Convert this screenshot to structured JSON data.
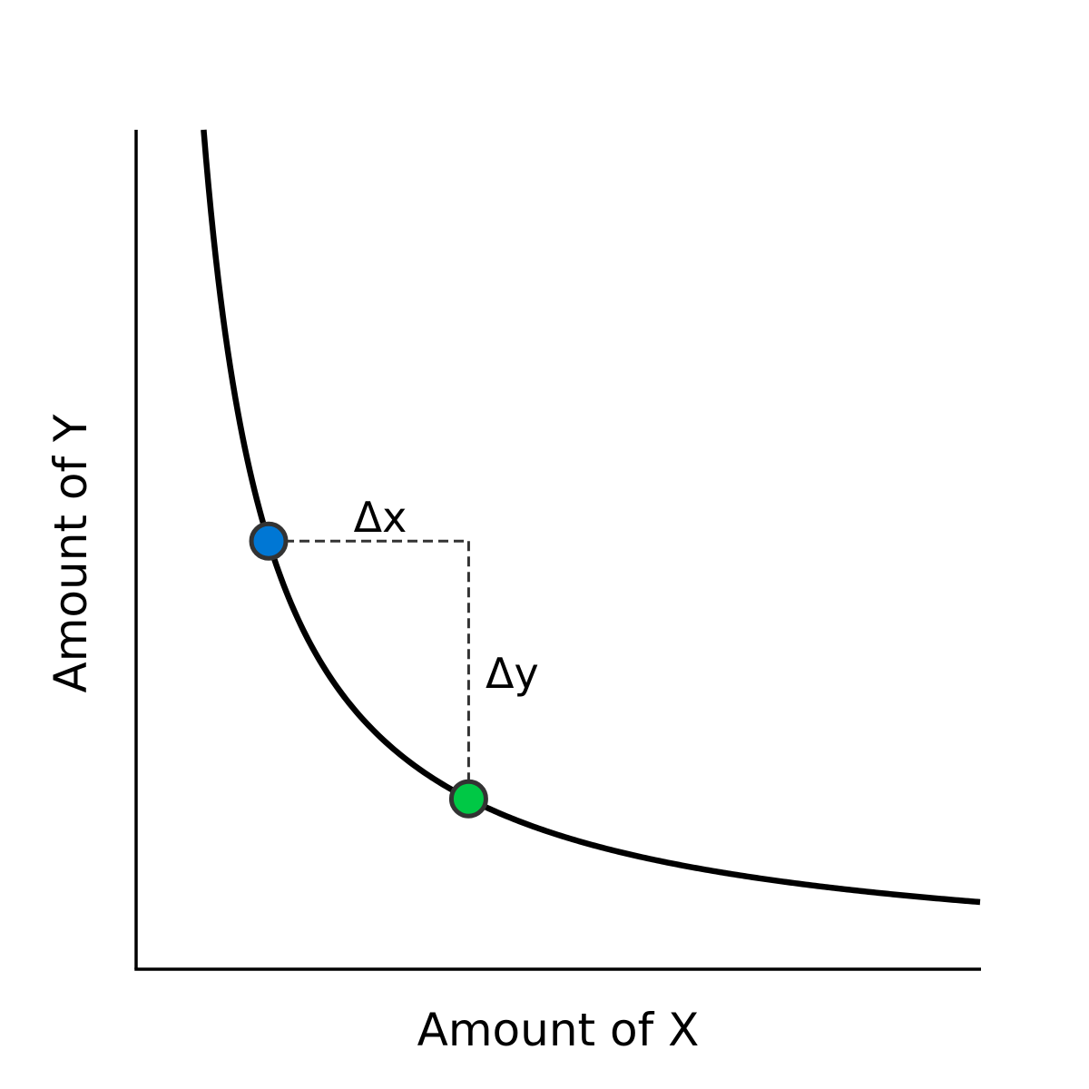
{
  "chart_data": {
    "type": "line",
    "title": "",
    "xlabel": "Amount of X",
    "ylabel": "Amount of Y",
    "ticks_visible": false,
    "grid": false,
    "xlim": [
      0,
      10
    ],
    "ylim": [
      0,
      10
    ],
    "series": [
      {
        "kind": "curve",
        "equation": "y = 8 / x",
        "k": 8,
        "x_range": [
          0.8,
          10
        ],
        "color": "#000000"
      }
    ],
    "points": [
      {
        "x": 1.57,
        "y": 5.1,
        "color": "#0077d4",
        "edge_color": "#333333"
      },
      {
        "x": 3.94,
        "y": 2.03,
        "color": "#00c845",
        "edge_color": "#333333"
      }
    ],
    "annotations": {
      "guide_color": "#333333",
      "delta_x_label": "Δx",
      "delta_y_label": "Δy"
    }
  }
}
